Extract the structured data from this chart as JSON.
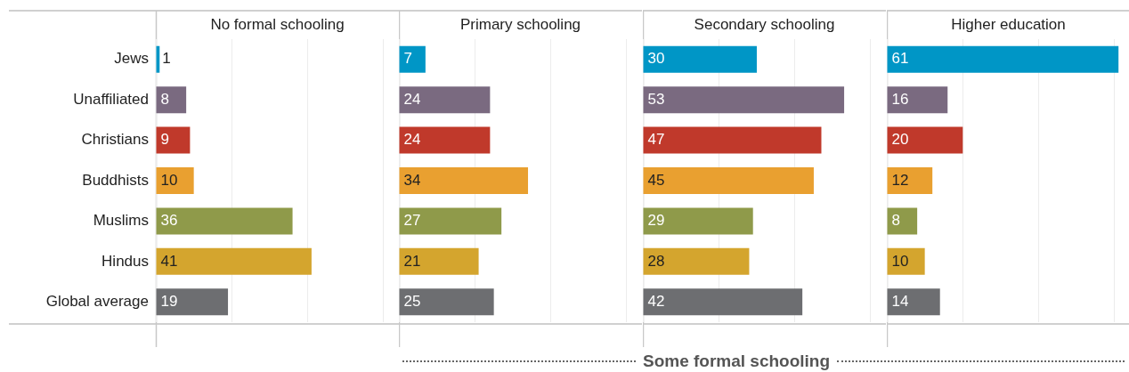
{
  "chart_data": [
    {
      "type": "bar",
      "orientation": "horizontal",
      "title": "No formal schooling",
      "categories": [
        "Jews",
        "Unaffiliated",
        "Christians",
        "Buddhists",
        "Muslims",
        "Hindus",
        "Global average"
      ],
      "values": [
        1,
        8,
        9,
        10,
        36,
        41,
        19
      ],
      "colors": [
        "#0096c6",
        "#7a6a80",
        "#c0392b",
        "#e9a030",
        "#8f9a4a",
        "#d4a52e",
        "#6d6e71"
      ],
      "xlim": [
        0,
        64
      ],
      "xticks": [
        {
          "value": 0,
          "label": null
        },
        {
          "value": 20,
          "label": null
        },
        {
          "value": 40,
          "label": null
        },
        {
          "value": 60,
          "label": null
        }
      ],
      "grid": "x",
      "tick_labels": "y",
      "data_labels": true
    },
    {
      "type": "bar",
      "orientation": "horizontal",
      "title": "Primary schooling",
      "categories": [
        null,
        null,
        null,
        null,
        null,
        null,
        null
      ],
      "values": [
        7,
        24,
        24,
        34,
        27,
        21,
        25
      ],
      "colors": [
        "#0096c6",
        "#7a6a80",
        "#c0392b",
        "#e9a030",
        "#8f9a4a",
        "#d4a52e",
        "#6d6e71"
      ],
      "xlim": [
        0,
        64
      ],
      "xticks": [
        {
          "value": 0,
          "label": null
        },
        {
          "value": 20,
          "label": null
        },
        {
          "value": 40,
          "label": null
        },
        {
          "value": 60,
          "label": null
        }
      ],
      "grid": "x",
      "tick_labels": false,
      "data_labels": true,
      "annotations": [
        "Some formal schooling"
      ]
    },
    {
      "type": "bar",
      "orientation": "horizontal",
      "title": "Secondary schooling",
      "categories": [
        null,
        null,
        null,
        null,
        null,
        null,
        null
      ],
      "values": [
        30,
        53,
        47,
        45,
        29,
        28,
        42
      ],
      "colors": [
        "#0096c6",
        "#7a6a80",
        "#c0392b",
        "#e9a030",
        "#8f9a4a",
        "#d4a52e",
        "#6d6e71"
      ],
      "xlim": [
        0,
        64
      ],
      "xticks": [
        {
          "value": 0,
          "label": null
        },
        {
          "value": 20,
          "label": null
        },
        {
          "value": 40,
          "label": null
        },
        {
          "value": 60,
          "label": null
        }
      ],
      "grid": "x",
      "tick_labels": false,
      "data_labels": true
    },
    {
      "type": "bar",
      "orientation": "horizontal",
      "title": "Higher education",
      "categories": [
        null,
        null,
        null,
        null,
        null,
        null,
        null
      ],
      "values": [
        61,
        16,
        20,
        12,
        8,
        10,
        14
      ],
      "colors": [
        "#0096c6",
        "#7a6a80",
        "#c0392b",
        "#e9a030",
        "#8f9a4a",
        "#d4a52e",
        "#6d6e71"
      ],
      "xlim": [
        0,
        64
      ],
      "xticks": [
        {
          "value": 0,
          "label": null
        },
        {
          "value": 20,
          "label": null
        },
        {
          "value": 40,
          "label": null
        },
        {
          "value": 60,
          "label": null
        }
      ],
      "grid": "x",
      "tick_labels": false,
      "data_labels": true
    }
  ]
}
